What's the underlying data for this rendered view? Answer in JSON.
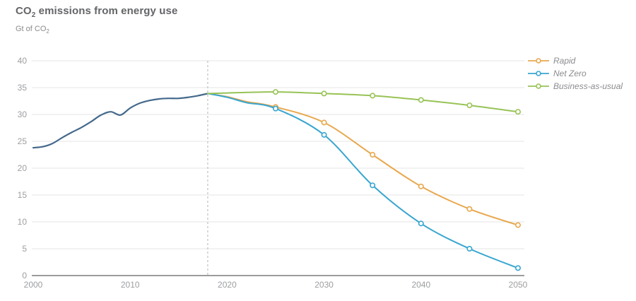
{
  "header": {
    "title": {
      "prefix": "CO",
      "sub": "2",
      "rest": " emissions from energy use"
    },
    "subtitle": {
      "prefix": "Gt of CO",
      "sub": "2"
    }
  },
  "chart_data": {
    "type": "line",
    "title": "CO2 emissions from energy use",
    "ylabel": "Gt of CO2",
    "xlabel": "",
    "xlim": [
      2000,
      2050
    ],
    "ylim": [
      0,
      40
    ],
    "yticks": [
      0,
      5,
      10,
      15,
      20,
      25,
      30,
      35,
      40
    ],
    "xticks": [
      2000,
      2010,
      2020,
      2030,
      2040,
      2050
    ],
    "grid": "horizontal",
    "legend_position": "top-right",
    "annotation": {
      "type": "vertical-dashed-line",
      "x": 2018
    },
    "colors": {
      "grid": "#e4e4e4",
      "axis": "#9b9b9b",
      "dashed": "#b3b3b3"
    },
    "series": [
      {
        "id": "history",
        "name": "",
        "in_legend": false,
        "color": "#44698c",
        "width": 2.2,
        "marker_years": [],
        "x": [
          2000,
          2001,
          2002,
          2003,
          2004,
          2005,
          2006,
          2007,
          2008,
          2009,
          2010,
          2011,
          2012,
          2013,
          2014,
          2015,
          2016,
          2017,
          2018
        ],
        "y": [
          23.8,
          24.0,
          24.6,
          25.7,
          26.7,
          27.6,
          28.7,
          29.9,
          30.5,
          29.9,
          31.2,
          32.1,
          32.6,
          32.9,
          33.0,
          33.0,
          33.2,
          33.5,
          33.9
        ]
      },
      {
        "id": "rapid",
        "name": "Rapid",
        "in_legend": true,
        "color": "#e8a84e",
        "width": 2,
        "marker_years": [
          2025,
          2030,
          2035,
          2040,
          2045,
          2050
        ],
        "x": [
          2018,
          2020,
          2022,
          2025,
          2030,
          2035,
          2040,
          2045,
          2050
        ],
        "y": [
          33.9,
          33.3,
          32.4,
          31.4,
          28.5,
          22.5,
          16.6,
          12.4,
          9.4
        ]
      },
      {
        "id": "net-zero",
        "name": "Net Zero",
        "in_legend": true,
        "color": "#38a6d0",
        "width": 2,
        "marker_years": [
          2025,
          2030,
          2035,
          2040,
          2045,
          2050
        ],
        "x": [
          2018,
          2020,
          2022,
          2025,
          2030,
          2035,
          2040,
          2045,
          2050
        ],
        "y": [
          33.9,
          33.2,
          32.2,
          31.1,
          26.2,
          16.8,
          9.7,
          5.0,
          1.4
        ]
      },
      {
        "id": "business-as-usual",
        "name": "Business-as-usual",
        "in_legend": true,
        "color": "#97c355",
        "width": 2,
        "marker_years": [
          2025,
          2030,
          2035,
          2040,
          2045,
          2050
        ],
        "x": [
          2018,
          2020,
          2025,
          2030,
          2035,
          2040,
          2045,
          2050
        ],
        "y": [
          33.9,
          34.0,
          34.2,
          33.9,
          33.5,
          32.7,
          31.7,
          30.5
        ]
      }
    ]
  }
}
